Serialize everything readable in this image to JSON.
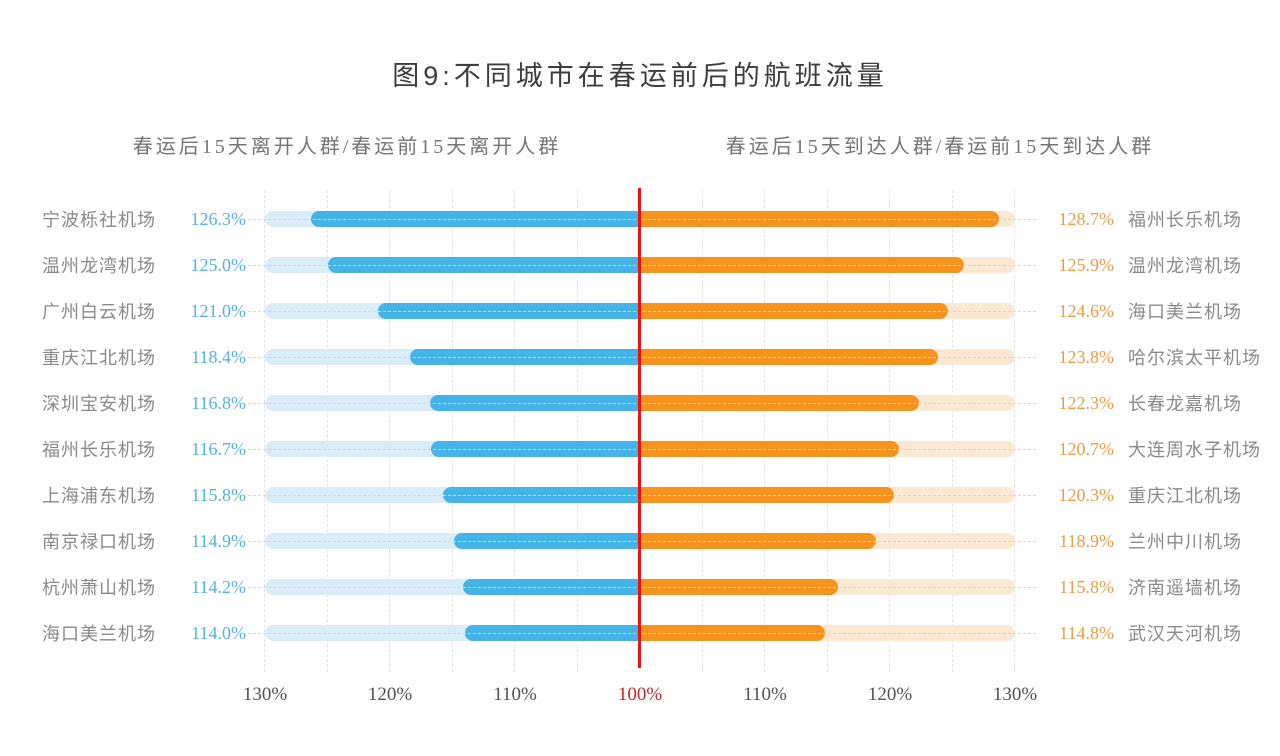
{
  "title": "图9:不同城市在春运前后的航班流量",
  "subtitles": {
    "left": "春运后15天离开人群/春运前15天离开人群",
    "right": "春运后15天到达人群/春运前15天到达人群"
  },
  "chart_data": {
    "type": "bar",
    "variant": "bidirectional_tornado",
    "title": "图9:不同城市在春运前后的航班流量",
    "axis": {
      "tick_labels": [
        "130%",
        "120%",
        "110%",
        "100%",
        "110%",
        "120%",
        "130%"
      ],
      "center": 100,
      "max": 130,
      "step": 10,
      "unit": "%",
      "grid": "vertical dashed lines every 5%",
      "center_line_color": "#EE1111",
      "center_tick_color": "#C9242B"
    },
    "left": {
      "subtitle": "春运后15天离开人群/春运前15天离开人群",
      "direction": "leftward",
      "bar_color": "#45B2E8",
      "track_color": "#D9ECF8",
      "value_color": "#55B1E3",
      "rows": [
        {
          "airport": "宁波栎社机场",
          "value": 126.3,
          "label": "126.3%"
        },
        {
          "airport": "温州龙湾机场",
          "value": 125.0,
          "label": "125.0%"
        },
        {
          "airport": "广州白云机场",
          "value": 121.0,
          "label": "121.0%"
        },
        {
          "airport": "重庆江北机场",
          "value": 118.4,
          "label": "118.4%"
        },
        {
          "airport": "深圳宝安机场",
          "value": 116.8,
          "label": "116.8%"
        },
        {
          "airport": "福州长乐机场",
          "value": 116.7,
          "label": "116.7%"
        },
        {
          "airport": "上海浦东机场",
          "value": 115.8,
          "label": "115.8%"
        },
        {
          "airport": "南京禄口机场",
          "value": 114.9,
          "label": "114.9%"
        },
        {
          "airport": "杭州萧山机场",
          "value": 114.2,
          "label": "114.2%"
        },
        {
          "airport": "海口美兰机场",
          "value": 114.0,
          "label": "114.0%"
        }
      ]
    },
    "right": {
      "subtitle": "春运后15天到达人群/春运前15天到达人群",
      "direction": "rightward",
      "bar_color": "#F6921E",
      "track_color": "#FBE8D3",
      "value_color": "#ED9C44",
      "rows": [
        {
          "airport": "福州长乐机场",
          "value": 128.7,
          "label": "128.7%"
        },
        {
          "airport": "温州龙湾机场",
          "value": 125.9,
          "label": "125.9%"
        },
        {
          "airport": "海口美兰机场",
          "value": 124.6,
          "label": "124.6%"
        },
        {
          "airport": "哈尔滨太平机场",
          "value": 123.8,
          "label": "123.8%"
        },
        {
          "airport": "长春龙嘉机场",
          "value": 122.3,
          "label": "122.3%"
        },
        {
          "airport": "大连周水子机场",
          "value": 120.7,
          "label": "120.7%"
        },
        {
          "airport": "重庆江北机场",
          "value": 120.3,
          "label": "120.3%"
        },
        {
          "airport": "兰州中川机场",
          "value": 118.9,
          "label": "118.9%"
        },
        {
          "airport": "济南遥墙机场",
          "value": 115.8,
          "label": "115.8%"
        },
        {
          "airport": "武汉天河机场",
          "value": 114.8,
          "label": "114.8%"
        }
      ]
    }
  }
}
